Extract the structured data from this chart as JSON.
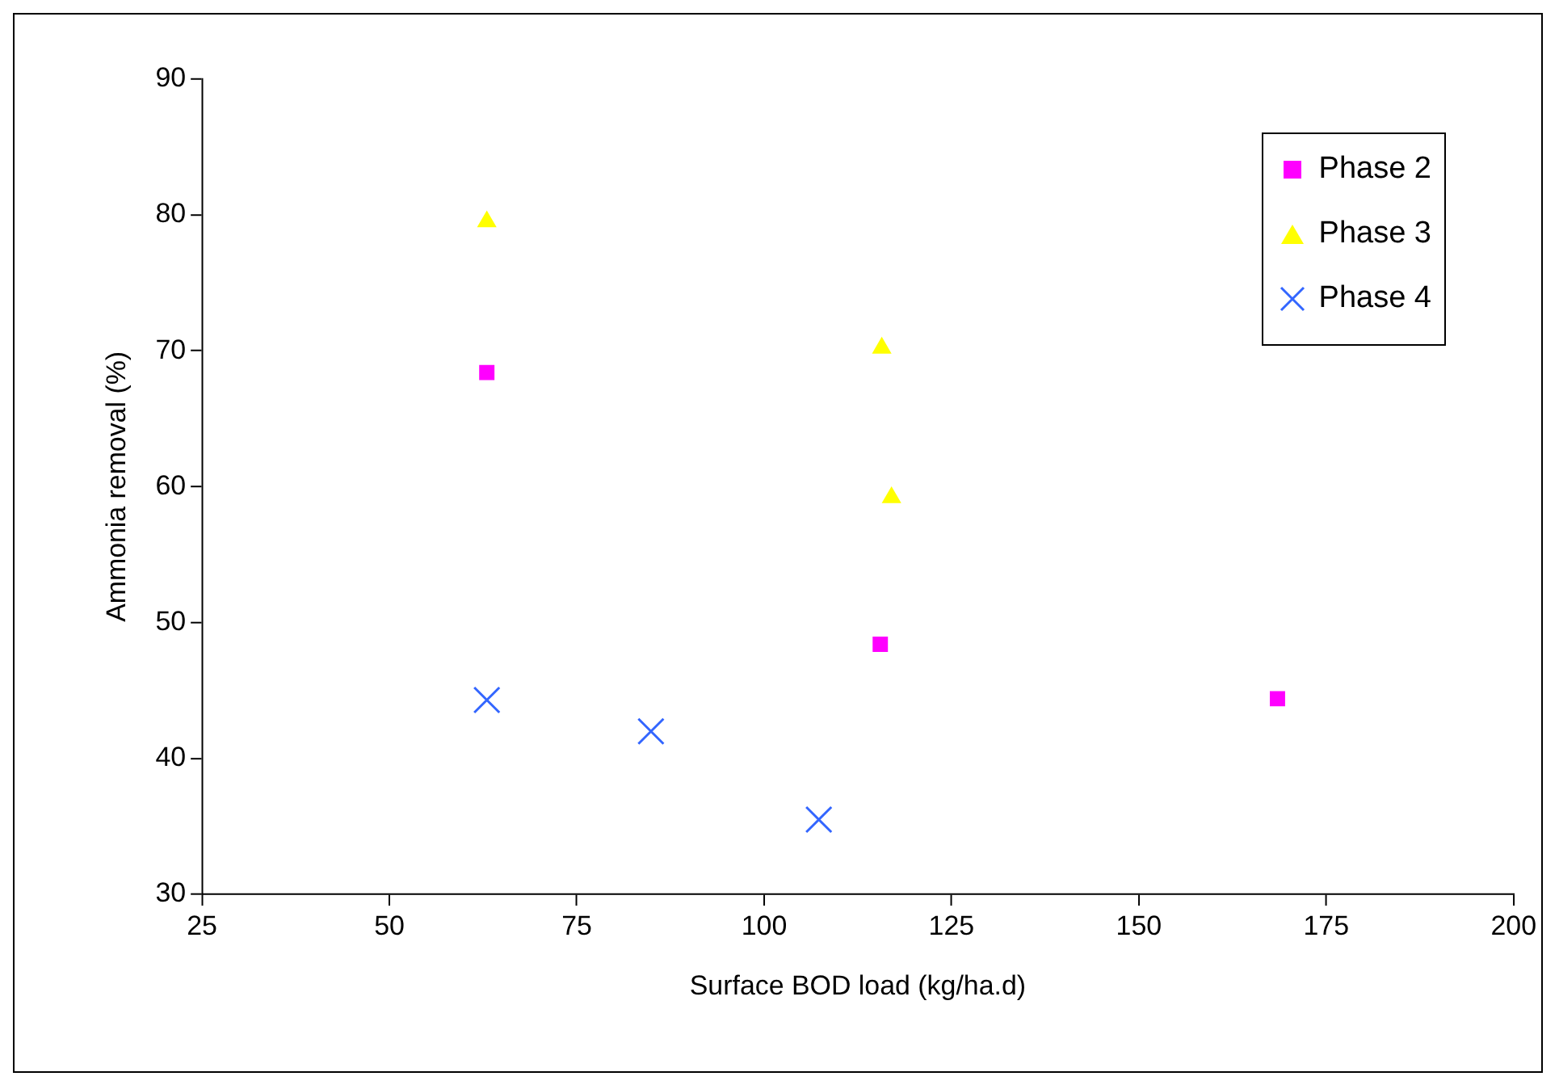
{
  "chart_data": {
    "type": "scatter",
    "xlabel": "Surface BOD load (kg/ha.d)",
    "ylabel": "Ammonia removal (%)",
    "xlim": [
      25,
      200
    ],
    "xticks": [
      25,
      50,
      75,
      100,
      125,
      150,
      175,
      200
    ],
    "ylim": [
      30,
      90
    ],
    "yticks": [
      30,
      40,
      50,
      60,
      70,
      80,
      90
    ],
    "grid": false,
    "legend": "top right",
    "series": [
      {
        "name": "Phase 2",
        "color": "#ff00ff",
        "marker": "square",
        "x": [
          63,
          115.5,
          168.5
        ],
        "values": [
          68.4,
          48.4,
          44.4
        ]
      },
      {
        "name": "Phase 3",
        "color": "#ffff00",
        "marker": "triangle",
        "x": [
          63,
          115.7,
          117
        ],
        "values": [
          79.5,
          70.2,
          59.2
        ]
      },
      {
        "name": "Phase 4",
        "color": "#3366ff",
        "marker": "cross",
        "x": [
          63,
          84.9,
          107.3
        ],
        "values": [
          44.3,
          42.0,
          35.5
        ]
      }
    ]
  }
}
